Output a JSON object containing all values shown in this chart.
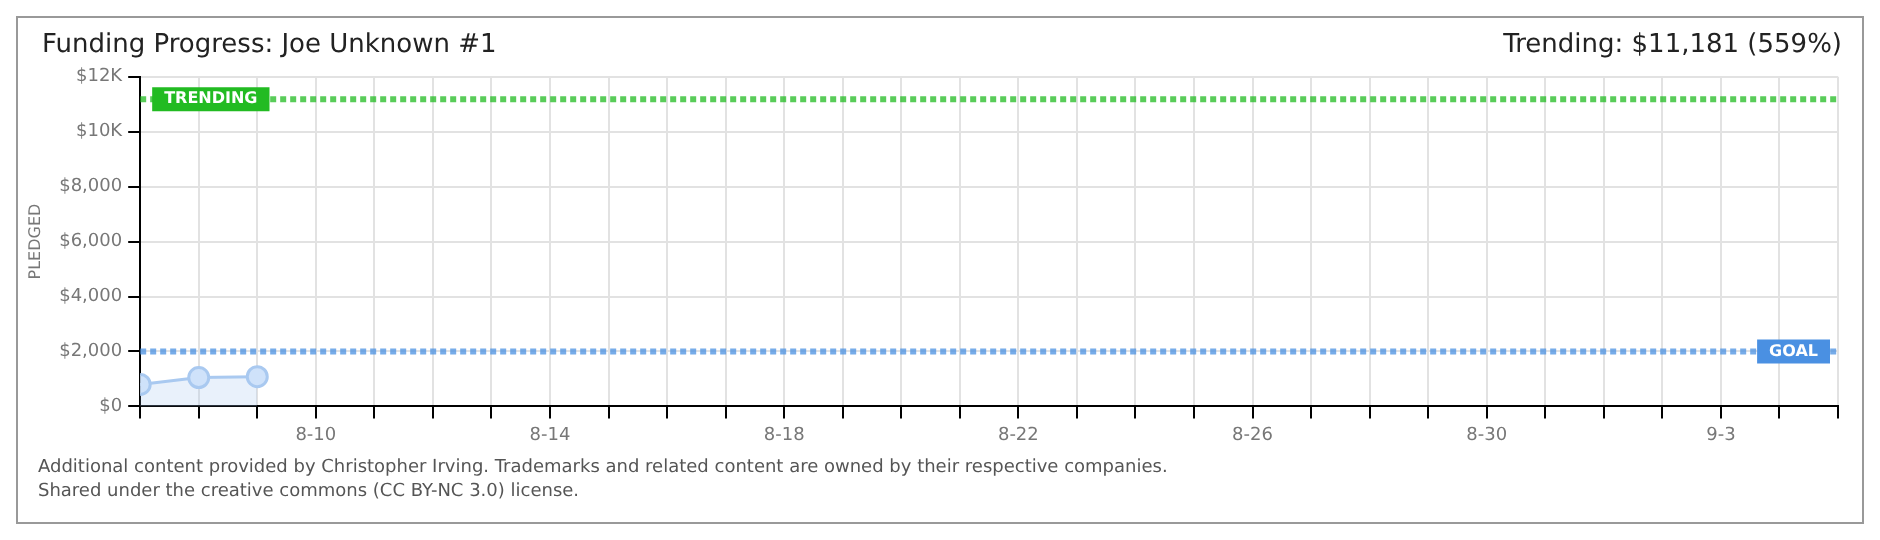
{
  "chart_data": {
    "type": "area",
    "title": "Funding Progress: Joe Unknown #1",
    "subtitle": "Trending: $11,181 (559%)",
    "ylabel": "PLEDGED",
    "series": [
      {
        "color": "#a9c9f0",
        "x": [
          "--08-07",
          "--08-08",
          "--08-09"
        ],
        "values": [
          800,
          1050,
          1080
        ]
      }
    ],
    "xlim": [
      "--08-07",
      "--09-05"
    ],
    "xticks": [
      {
        "value": "--08-07",
        "label": null
      },
      {
        "value": "--08-08",
        "label": null
      },
      {
        "value": "--08-09",
        "label": null
      },
      {
        "value": "--08-10",
        "label": "8-10"
      },
      {
        "value": "--08-11",
        "label": null
      },
      {
        "value": "--08-12",
        "label": null
      },
      {
        "value": "--08-13",
        "label": null
      },
      {
        "value": "--08-14",
        "label": "8-14"
      },
      {
        "value": "--08-15",
        "label": null
      },
      {
        "value": "--08-16",
        "label": null
      },
      {
        "value": "--08-17",
        "label": null
      },
      {
        "value": "--08-18",
        "label": "8-18"
      },
      {
        "value": "--08-19",
        "label": null
      },
      {
        "value": "--08-20",
        "label": null
      },
      {
        "value": "--08-21",
        "label": null
      },
      {
        "value": "--08-22",
        "label": "8-22"
      },
      {
        "value": "--08-23",
        "label": null
      },
      {
        "value": "--08-24",
        "label": null
      },
      {
        "value": "--08-25",
        "label": null
      },
      {
        "value": "--08-26",
        "label": "8-26"
      },
      {
        "value": "--08-27",
        "label": null
      },
      {
        "value": "--08-28",
        "label": null
      },
      {
        "value": "--08-29",
        "label": null
      },
      {
        "value": "--08-30",
        "label": "8-30"
      },
      {
        "value": "--08-31",
        "label": null
      },
      {
        "value": "--09-01",
        "label": null
      },
      {
        "value": "--09-02",
        "label": null
      },
      {
        "value": "--09-03",
        "label": "9-3"
      },
      {
        "value": "--09-04",
        "label": null
      },
      {
        "value": "--09-05",
        "label": null
      }
    ],
    "ylim": [
      0,
      12000
    ],
    "yticks": [
      {
        "value": 0,
        "label": "$0"
      },
      {
        "value": 2000,
        "label": "$2,000"
      },
      {
        "value": 4000,
        "label": "$4,000"
      },
      {
        "value": 6000,
        "label": "$6,000"
      },
      {
        "value": 8000,
        "label": "$8,000"
      },
      {
        "value": 10000,
        "label": "$10K"
      },
      {
        "value": 12000,
        "label": "$12K"
      }
    ],
    "ref_lines": [
      {
        "axis": "y",
        "value": 2000,
        "label": "GOAL",
        "color": "#4a90e2",
        "line_style": "dotted"
      },
      {
        "axis": "y",
        "value": 11181,
        "label": "TRENDING",
        "color": "#22bb22",
        "line_style": "dotted"
      }
    ],
    "grid": true,
    "legend": false,
    "marker": "circle",
    "line_style": "solid",
    "annotations": [
      "Additional content provided by Christopher Irving. Trademarks and related content are owned by their respective companies.",
      "Shared under the creative commons (CC BY-NC 3.0) license."
    ]
  }
}
